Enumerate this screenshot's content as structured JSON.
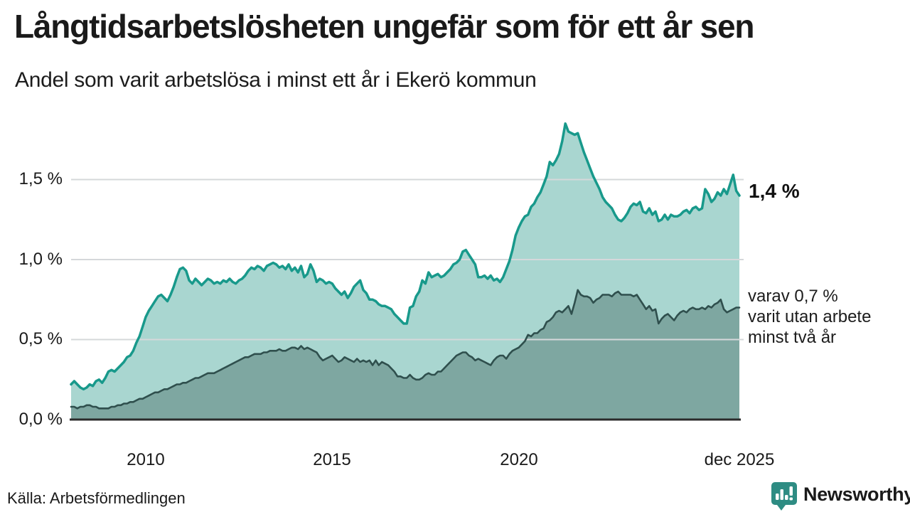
{
  "header": {
    "title": "Långtidsarbetslösheten ungefär som för ett år sen",
    "subtitle": "Andel som varit arbetslösa i minst ett år i Ekerö kommun"
  },
  "annotations": {
    "latest_total": "1,4 %",
    "secondary_lines": [
      "varav 0,7 %",
      "varit utan arbete",
      "minst två år"
    ]
  },
  "footer": {
    "source": "Källa: Arbetsförmedlingen",
    "brand": "Newsworthy"
  },
  "chart_data": {
    "type": "area",
    "title": "Andel som varit arbetslösa i minst ett år i Ekerö kommun",
    "x_start": "2008-01",
    "x_end": "2025-12",
    "x_frequency": "monthly",
    "ylim": [
      0,
      1.9
    ],
    "grid": true,
    "unit": "%",
    "ytick_labels": [
      "0,0 %",
      "0,5 %",
      "1,0 %",
      "1,5 %"
    ],
    "ytick_values": [
      0,
      0.5,
      1.0,
      1.5
    ],
    "xtick_labels": [
      "2010",
      "2015",
      "2020",
      "dec 2025"
    ],
    "colors": {
      "line_total": "#18998b",
      "fill_total": "#a9d6d0",
      "line_two_years": "#2f4f4d",
      "fill_two_years": "#7ea7a1",
      "gridline": "#d5d8da",
      "axis": "#2b2b2b",
      "brand_teal": "#2a9187"
    },
    "series": [
      {
        "name": "arbetslösa minst ett år",
        "latest_value": 1.4,
        "values": [
          0.22,
          0.24,
          0.22,
          0.2,
          0.19,
          0.2,
          0.22,
          0.21,
          0.24,
          0.25,
          0.23,
          0.26,
          0.3,
          0.31,
          0.3,
          0.32,
          0.34,
          0.36,
          0.39,
          0.4,
          0.43,
          0.48,
          0.52,
          0.58,
          0.64,
          0.68,
          0.71,
          0.74,
          0.77,
          0.78,
          0.76,
          0.74,
          0.78,
          0.83,
          0.89,
          0.94,
          0.95,
          0.93,
          0.87,
          0.85,
          0.88,
          0.86,
          0.84,
          0.86,
          0.88,
          0.87,
          0.85,
          0.86,
          0.85,
          0.87,
          0.86,
          0.88,
          0.86,
          0.85,
          0.87,
          0.88,
          0.9,
          0.93,
          0.95,
          0.94,
          0.96,
          0.95,
          0.93,
          0.96,
          0.97,
          0.98,
          0.97,
          0.95,
          0.96,
          0.94,
          0.97,
          0.93,
          0.95,
          0.92,
          0.96,
          0.89,
          0.91,
          0.97,
          0.93,
          0.86,
          0.88,
          0.87,
          0.85,
          0.86,
          0.85,
          0.82,
          0.8,
          0.78,
          0.8,
          0.76,
          0.79,
          0.83,
          0.85,
          0.87,
          0.81,
          0.79,
          0.75,
          0.75,
          0.74,
          0.72,
          0.71,
          0.71,
          0.7,
          0.69,
          0.66,
          0.64,
          0.62,
          0.6,
          0.6,
          0.7,
          0.71,
          0.77,
          0.8,
          0.87,
          0.85,
          0.92,
          0.89,
          0.9,
          0.91,
          0.89,
          0.9,
          0.92,
          0.94,
          0.97,
          0.98,
          1.0,
          1.05,
          1.06,
          1.03,
          1.0,
          0.97,
          0.89,
          0.89,
          0.9,
          0.88,
          0.9,
          0.87,
          0.88,
          0.86,
          0.89,
          0.94,
          0.99,
          1.06,
          1.15,
          1.2,
          1.24,
          1.27,
          1.28,
          1.33,
          1.35,
          1.39,
          1.42,
          1.47,
          1.52,
          1.61,
          1.59,
          1.62,
          1.66,
          1.74,
          1.85,
          1.8,
          1.79,
          1.78,
          1.79,
          1.73,
          1.67,
          1.62,
          1.57,
          1.52,
          1.48,
          1.44,
          1.39,
          1.36,
          1.34,
          1.32,
          1.28,
          1.25,
          1.24,
          1.26,
          1.29,
          1.33,
          1.35,
          1.34,
          1.36,
          1.3,
          1.29,
          1.32,
          1.28,
          1.3,
          1.24,
          1.25,
          1.28,
          1.25,
          1.28,
          1.27,
          1.27,
          1.28,
          1.3,
          1.31,
          1.29,
          1.32,
          1.33,
          1.31,
          1.32,
          1.44,
          1.41,
          1.36,
          1.38,
          1.42,
          1.4,
          1.44,
          1.41,
          1.47,
          1.53,
          1.43,
          1.4
        ]
      },
      {
        "name": "varav utan arbete minst två år",
        "latest_value": 0.7,
        "values": [
          0.08,
          0.08,
          0.07,
          0.08,
          0.08,
          0.09,
          0.09,
          0.08,
          0.08,
          0.07,
          0.07,
          0.07,
          0.07,
          0.08,
          0.08,
          0.09,
          0.09,
          0.1,
          0.1,
          0.11,
          0.11,
          0.12,
          0.13,
          0.13,
          0.14,
          0.15,
          0.16,
          0.17,
          0.17,
          0.18,
          0.19,
          0.19,
          0.2,
          0.21,
          0.22,
          0.22,
          0.23,
          0.23,
          0.24,
          0.25,
          0.26,
          0.26,
          0.27,
          0.28,
          0.29,
          0.29,
          0.29,
          0.3,
          0.31,
          0.32,
          0.33,
          0.34,
          0.35,
          0.36,
          0.37,
          0.38,
          0.39,
          0.39,
          0.4,
          0.41,
          0.41,
          0.41,
          0.42,
          0.42,
          0.43,
          0.43,
          0.43,
          0.44,
          0.43,
          0.43,
          0.44,
          0.45,
          0.45,
          0.44,
          0.46,
          0.44,
          0.45,
          0.44,
          0.43,
          0.42,
          0.39,
          0.37,
          0.38,
          0.39,
          0.4,
          0.38,
          0.36,
          0.37,
          0.39,
          0.38,
          0.37,
          0.36,
          0.38,
          0.36,
          0.37,
          0.36,
          0.37,
          0.34,
          0.37,
          0.34,
          0.36,
          0.35,
          0.34,
          0.32,
          0.3,
          0.27,
          0.27,
          0.26,
          0.26,
          0.28,
          0.26,
          0.25,
          0.25,
          0.26,
          0.28,
          0.29,
          0.28,
          0.28,
          0.3,
          0.3,
          0.32,
          0.34,
          0.36,
          0.38,
          0.4,
          0.41,
          0.42,
          0.42,
          0.4,
          0.39,
          0.37,
          0.38,
          0.37,
          0.36,
          0.35,
          0.34,
          0.37,
          0.39,
          0.4,
          0.4,
          0.38,
          0.41,
          0.43,
          0.44,
          0.45,
          0.47,
          0.49,
          0.53,
          0.52,
          0.54,
          0.54,
          0.56,
          0.57,
          0.61,
          0.62,
          0.64,
          0.67,
          0.68,
          0.67,
          0.69,
          0.71,
          0.66,
          0.73,
          0.81,
          0.78,
          0.77,
          0.77,
          0.76,
          0.73,
          0.75,
          0.76,
          0.78,
          0.78,
          0.78,
          0.77,
          0.79,
          0.8,
          0.78,
          0.78,
          0.78,
          0.78,
          0.77,
          0.78,
          0.75,
          0.72,
          0.69,
          0.71,
          0.68,
          0.69,
          0.6,
          0.63,
          0.65,
          0.66,
          0.64,
          0.62,
          0.65,
          0.67,
          0.68,
          0.67,
          0.69,
          0.7,
          0.69,
          0.69,
          0.7,
          0.69,
          0.71,
          0.7,
          0.72,
          0.73,
          0.75,
          0.69,
          0.67,
          0.68,
          0.69,
          0.7,
          0.7
        ]
      }
    ]
  }
}
